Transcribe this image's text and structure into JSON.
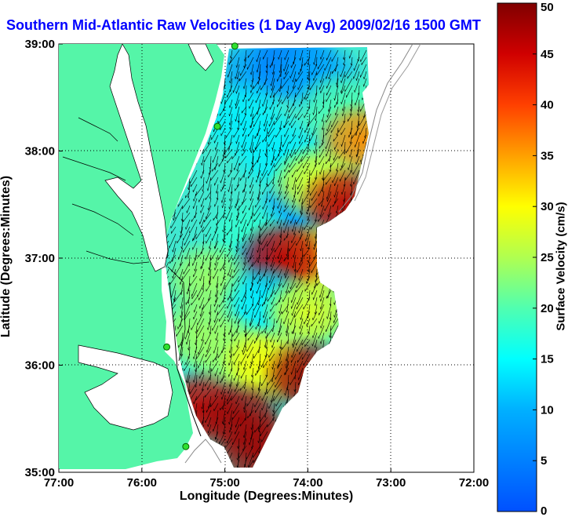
{
  "title": "Southern Mid-Atlantic Raw Velocities (1 Day Avg) 2009/02/16 1500 GMT",
  "chart_data": {
    "type": "heatmap",
    "title": "Southern Mid-Atlantic Raw Velocities (1 Day Avg) 2009/02/16 1500 GMT",
    "xlabel": "Longitude (Degrees:Minutes)",
    "ylabel": "Latitude (Degrees:Minutes)",
    "colorbar_label": "Surface Velocity (cm/s)",
    "x_ticks": [
      "77:00",
      "76:00",
      "75:00",
      "74:00",
      "73:00",
      "72:00"
    ],
    "x_values": [
      -77,
      -76,
      -75,
      -74,
      -73,
      -72
    ],
    "y_ticks": [
      "39:00",
      "38:00",
      "37:00",
      "36:00",
      "35:00"
    ],
    "y_values": [
      39,
      38,
      37,
      36,
      35
    ],
    "xlim": [
      -77,
      -72
    ],
    "ylim": [
      35,
      39
    ],
    "colorbar_ticks": [
      "50",
      "45",
      "40",
      "35",
      "30",
      "25",
      "20",
      "15",
      "10",
      "5",
      "0"
    ],
    "colorbar_range": [
      0,
      50
    ],
    "grid": "dotted",
    "land_color": "#55f5a8",
    "stations": [
      {
        "lon": -74.88,
        "lat": 38.98
      },
      {
        "lon": -75.09,
        "lat": 38.23
      },
      {
        "lon": -75.7,
        "lat": 36.17
      },
      {
        "lon": -75.47,
        "lat": 35.24
      }
    ],
    "speed_regions": [
      {
        "lon": -74.6,
        "lat": 38.75,
        "speed": 8
      },
      {
        "lon": -74.2,
        "lat": 38.85,
        "speed": 5
      },
      {
        "lon": -73.9,
        "lat": 38.7,
        "speed": 9
      },
      {
        "lon": -74.8,
        "lat": 38.3,
        "speed": 14
      },
      {
        "lon": -74.4,
        "lat": 38.0,
        "speed": 14
      },
      {
        "lon": -73.6,
        "lat": 38.4,
        "speed": 20
      },
      {
        "lon": -73.35,
        "lat": 38.1,
        "speed": 36
      },
      {
        "lon": -74.1,
        "lat": 37.4,
        "speed": 8
      },
      {
        "lon": -74.7,
        "lat": 37.2,
        "speed": 18
      },
      {
        "lon": -73.9,
        "lat": 37.7,
        "speed": 28
      },
      {
        "lon": -73.55,
        "lat": 37.5,
        "speed": 46
      },
      {
        "lon": -74.45,
        "lat": 36.9,
        "speed": 8
      },
      {
        "lon": -73.9,
        "lat": 37.0,
        "speed": 32
      },
      {
        "lon": -74.3,
        "lat": 37.0,
        "speed": 46
      },
      {
        "lon": -75.2,
        "lat": 36.8,
        "speed": 24
      },
      {
        "lon": -74.5,
        "lat": 36.6,
        "speed": 14
      },
      {
        "lon": -74.0,
        "lat": 36.5,
        "speed": 28
      },
      {
        "lon": -75.3,
        "lat": 36.3,
        "speed": 24
      },
      {
        "lon": -74.9,
        "lat": 36.1,
        "speed": 24
      },
      {
        "lon": -74.5,
        "lat": 36.0,
        "speed": 30
      },
      {
        "lon": -74.0,
        "lat": 35.9,
        "speed": 48
      },
      {
        "lon": -75.3,
        "lat": 35.6,
        "speed": 46
      },
      {
        "lon": -74.8,
        "lat": 35.5,
        "speed": 48
      },
      {
        "lon": -74.6,
        "lat": 35.2,
        "speed": 48
      }
    ],
    "flow_direction": "south-southwest",
    "flow_direction_deg": 200
  }
}
